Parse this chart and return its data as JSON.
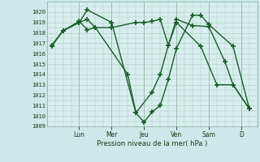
{
  "background_color": "#cce8e8",
  "plot_bg_color": "#d8eeee",
  "grid_color": "#aaccbb",
  "line_color": "#1a5c2a",
  "line_width": 1.0,
  "marker": "+",
  "marker_size": 4,
  "marker_edge_width": 1.2,
  "xlabel": "Pression niveau de la mer( hPa )",
  "ylim": [
    1009,
    1021
  ],
  "yticks": [
    1009,
    1010,
    1011,
    1012,
    1013,
    1014,
    1015,
    1016,
    1017,
    1018,
    1019,
    1020
  ],
  "day_labels": [
    "Lun",
    "Mer",
    "Jeu",
    "Ven",
    "Sam",
    "D"
  ],
  "day_x": [
    2,
    4,
    6,
    8,
    10,
    12
  ],
  "xlim": [
    0,
    13
  ],
  "series": [
    {
      "x": [
        0.3,
        1.0,
        2.0,
        2.5,
        4.0,
        5.5,
        6.0,
        6.5,
        7.0,
        7.5,
        8.0,
        9.0,
        9.5,
        10.0,
        11.5,
        12.5
      ],
      "y": [
        1016.7,
        1018.2,
        1019.0,
        1020.2,
        1019.0,
        1010.3,
        1009.4,
        1010.4,
        1011.0,
        1013.5,
        1016.5,
        1019.7,
        1019.7,
        1018.8,
        1016.7,
        1010.7
      ]
    },
    {
      "x": [
        0.3,
        1.0,
        2.0,
        2.5,
        3.0,
        4.0,
        5.5,
        6.0,
        6.5,
        7.0,
        7.5,
        8.0,
        9.0,
        10.0,
        11.0,
        11.5,
        12.5
      ],
      "y": [
        1016.8,
        1018.2,
        1019.0,
        1019.3,
        1018.5,
        1018.5,
        1019.0,
        1019.0,
        1019.1,
        1019.3,
        1016.8,
        1019.3,
        1018.7,
        1018.6,
        1015.2,
        1013.0,
        1010.7
      ]
    },
    {
      "x": [
        1.0,
        2.0,
        2.5,
        3.0,
        5.0,
        5.5,
        6.5,
        7.0,
        7.5,
        8.0,
        9.5,
        10.5,
        11.5,
        12.5
      ],
      "y": [
        1018.2,
        1019.1,
        1018.3,
        1018.5,
        1014.0,
        1010.3,
        1012.3,
        1014.0,
        1016.8,
        1019.0,
        1016.7,
        1013.0,
        1013.0,
        1010.7
      ]
    }
  ]
}
